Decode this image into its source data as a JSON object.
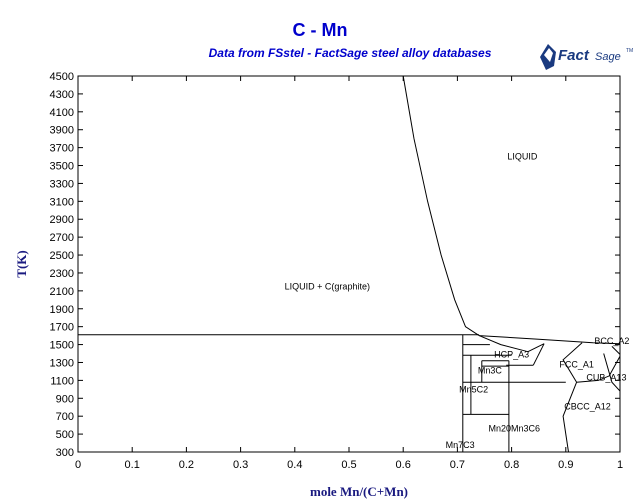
{
  "chart_data": {
    "type": "phase-diagram",
    "title": "C - Mn",
    "subtitle": "Data from FSstel - FactSage steel alloy databases",
    "xlabel": "mole Mn/(C+Mn)",
    "ylabel": "T(K)",
    "xlim": [
      0,
      1
    ],
    "ylim": [
      300,
      4500
    ],
    "xticks": [
      0,
      0.1,
      0.2,
      0.3,
      0.4,
      0.5,
      0.6,
      0.7,
      0.8,
      0.9,
      1
    ],
    "xtick_labels": [
      "0",
      "0.1",
      "0.2",
      "0.3",
      "0.4",
      "0.5",
      "0.6",
      "0.7",
      "0.8",
      "0.9",
      "1"
    ],
    "yticks": [
      300,
      500,
      700,
      900,
      1100,
      1300,
      1500,
      1700,
      1900,
      2100,
      2300,
      2500,
      2700,
      2900,
      3100,
      3300,
      3500,
      3700,
      3900,
      4100,
      4300,
      4500
    ],
    "ytick_labels": [
      "300",
      "500",
      "700",
      "900",
      "1100",
      "1300",
      "1500",
      "1700",
      "1900",
      "2100",
      "2300",
      "2500",
      "2700",
      "2900",
      "3100",
      "3300",
      "3500",
      "3700",
      "3900",
      "4100",
      "4300",
      "4500"
    ],
    "regions": [
      {
        "label": "LIQUID",
        "x": 0.82,
        "y": 3600
      },
      {
        "label": "LIQUID + C(graphite)",
        "x": 0.46,
        "y": 2150
      },
      {
        "label": "HCP_A3",
        "x": 0.8,
        "y": 1390
      },
      {
        "label": "Mn3C",
        "x": 0.76,
        "y": 1210
      },
      {
        "label": "FCC_A1",
        "x": 0.92,
        "y": 1280
      },
      {
        "label": "BCC_A2",
        "x": 0.985,
        "y": 1540
      },
      {
        "label": "CUB_A13",
        "x": 0.975,
        "y": 1130
      },
      {
        "label": "CBCC_A12",
        "x": 0.94,
        "y": 810
      },
      {
        "label": "Mn5C2",
        "x": 0.73,
        "y": 1000
      },
      {
        "label": "Mn20Mn3C6",
        "x": 0.805,
        "y": 560
      },
      {
        "label": "Mn7C3",
        "x": 0.705,
        "y": 380
      }
    ],
    "lines": [
      {
        "name": "liquidus",
        "points": [
          [
            0.6,
            4500
          ],
          [
            0.62,
            3800
          ],
          [
            0.645,
            3100
          ],
          [
            0.67,
            2500
          ],
          [
            0.695,
            2000
          ],
          [
            0.715,
            1700
          ],
          [
            0.74,
            1600
          ]
        ]
      },
      {
        "name": "eutectic",
        "points": [
          [
            0,
            1610
          ],
          [
            0.74,
            1610
          ]
        ]
      },
      {
        "name": "liquidus-mn",
        "points": [
          [
            0.74,
            1600
          ],
          [
            0.85,
            1560
          ],
          [
            0.95,
            1520
          ],
          [
            1,
            1510
          ]
        ]
      },
      {
        "name": "hcp-boundary-a",
        "points": [
          [
            0.74,
            1600
          ],
          [
            0.78,
            1500
          ],
          [
            0.83,
            1420
          ]
        ]
      },
      {
        "name": "hcp-boundary-b",
        "points": [
          [
            0.83,
            1420
          ],
          [
            0.86,
            1510
          ]
        ]
      },
      {
        "name": "fcc-left",
        "points": [
          [
            0.86,
            1510
          ],
          [
            0.84,
            1270
          ]
        ]
      },
      {
        "name": "fcc-bottom",
        "points": [
          [
            0.84,
            1270
          ],
          [
            0.79,
            1270
          ]
        ]
      },
      {
        "name": "mn5c2-top",
        "points": [
          [
            0.71,
            1500
          ],
          [
            0.76,
            1500
          ]
        ]
      },
      {
        "name": "mn7c3-left",
        "points": [
          [
            0.71,
            1610
          ],
          [
            0.71,
            300
          ]
        ]
      },
      {
        "name": "mn5c2-left",
        "points": [
          [
            0.725,
            1380
          ],
          [
            0.725,
            720
          ]
        ]
      },
      {
        "name": "mn3c-left",
        "points": [
          [
            0.745,
            1320
          ],
          [
            0.745,
            1080
          ]
        ]
      },
      {
        "name": "mn20c6-left",
        "points": [
          [
            0.795,
            1320
          ],
          [
            0.795,
            300
          ]
        ]
      },
      {
        "name": "mn3c-top",
        "points": [
          [
            0.745,
            1320
          ],
          [
            0.795,
            1320
          ]
        ]
      },
      {
        "name": "mn3c-mid",
        "points": [
          [
            0.745,
            1260
          ],
          [
            0.795,
            1260
          ]
        ]
      },
      {
        "name": "h1380",
        "points": [
          [
            0.71,
            1380
          ],
          [
            0.8,
            1380
          ]
        ]
      },
      {
        "name": "h1080",
        "points": [
          [
            0.71,
            1080
          ],
          [
            0.9,
            1080
          ]
        ]
      },
      {
        "name": "h720",
        "points": [
          [
            0.71,
            720
          ],
          [
            0.795,
            720
          ]
        ]
      },
      {
        "name": "fcc-right",
        "points": [
          [
            0.93,
            1520
          ],
          [
            0.895,
            1330
          ],
          [
            0.92,
            1080
          ]
        ]
      },
      {
        "name": "cbcc-top",
        "points": [
          [
            0.92,
            1080
          ],
          [
            0.96,
            1100
          ],
          [
            0.98,
            1150
          ],
          [
            1,
            1370
          ]
        ]
      },
      {
        "name": "cub-right",
        "points": [
          [
            0.97,
            1400
          ],
          [
            0.985,
            1080
          ],
          [
            1,
            980
          ]
        ]
      },
      {
        "name": "cbcc-left",
        "points": [
          [
            0.92,
            1080
          ],
          [
            0.895,
            700
          ],
          [
            0.905,
            300
          ]
        ]
      },
      {
        "name": "bcc-bottom",
        "points": [
          [
            0.985,
            1480
          ],
          [
            1,
            1390
          ]
        ]
      }
    ]
  },
  "logo": {
    "brand": "FactSage",
    "prefix": "Fact",
    "suffix": "Sage",
    "tm": "TM",
    "color": "#1a3a80"
  }
}
